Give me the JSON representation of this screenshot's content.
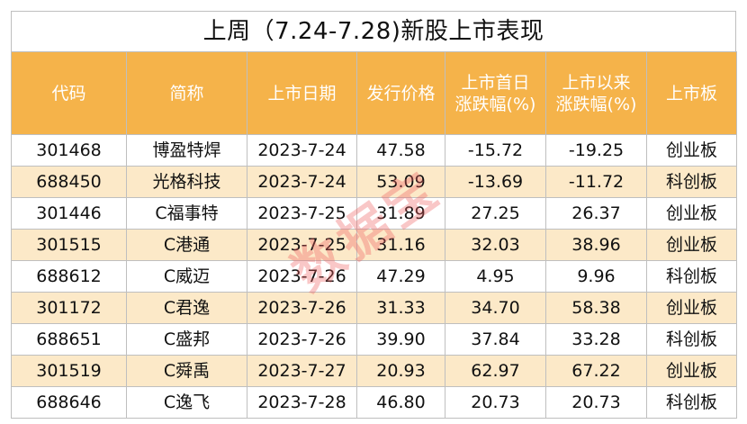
{
  "title": "上周（7.24-7.28)新股上市表现",
  "watermark": "数据宝",
  "headers": [
    "代码",
    "简称",
    "上市日期",
    "发行价格",
    "上市首日\n涨跌幅(%)",
    "上市以来\n涨跌幅(%)",
    "上市板"
  ],
  "rows": [
    [
      "301468",
      "博盈特焊",
      "2023-7-24",
      "47.58",
      "-15.72",
      "-19.25",
      "创业板"
    ],
    [
      "688450",
      "光格科技",
      "2023-7-24",
      "53.09",
      "-13.69",
      "-11.72",
      "科创板"
    ],
    [
      "301446",
      "C福事特",
      "2023-7-25",
      "31.89",
      "27.25",
      "26.37",
      "创业板"
    ],
    [
      "301515",
      "C港通",
      "2023-7-25",
      "31.16",
      "32.03",
      "38.96",
      "创业板"
    ],
    [
      "688612",
      "C威迈",
      "2023-7-26",
      "47.29",
      "4.95",
      "9.96",
      "科创板"
    ],
    [
      "301172",
      "C君逸",
      "2023-7-26",
      "31.33",
      "34.70",
      "58.38",
      "创业板"
    ],
    [
      "688651",
      "C盛邦",
      "2023-7-26",
      "39.90",
      "37.84",
      "33.28",
      "科创板"
    ],
    [
      "301519",
      "C舜禹",
      "2023-7-27",
      "20.93",
      "62.97",
      "67.22",
      "创业板"
    ],
    [
      "688646",
      "C逸飞",
      "2023-7-28",
      "46.80",
      "20.73",
      "20.73",
      "科创板"
    ]
  ]
}
